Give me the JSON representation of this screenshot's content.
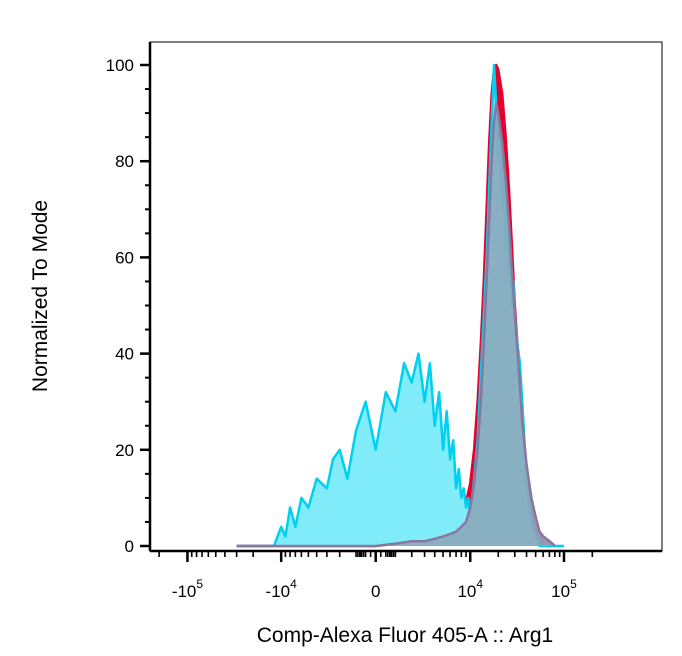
{
  "chart_data": {
    "type": "area",
    "title": "",
    "xlabel": "Comp-Alexa Fluor 405-A :: Arg1",
    "ylabel": "Normalized To Mode",
    "x_scale": "biexponential",
    "x_ticks": [
      {
        "value": -100000,
        "base": "-10",
        "exp": "5"
      },
      {
        "value": -10000,
        "base": "-10",
        "exp": "4"
      },
      {
        "value": 0,
        "base": "0",
        "exp": ""
      },
      {
        "value": 10000,
        "base": "10",
        "exp": "4"
      },
      {
        "value": 100000,
        "base": "10",
        "exp": "5"
      }
    ],
    "y_ticks": [
      "0",
      "20",
      "40",
      "60",
      "80",
      "100"
    ],
    "ylim": [
      0,
      100
    ],
    "grid": false,
    "series": [
      {
        "color": "#e8002a",
        "fill": "#e8002a",
        "x": [
          -30000,
          -20000,
          -10000,
          -5000,
          -2000,
          0,
          1000,
          2000,
          3000,
          4000,
          5000,
          6000,
          7000,
          8000,
          9000,
          10000,
          11000,
          12000,
          13000,
          14000,
          15000,
          16000,
          17000,
          18000,
          19000,
          20000,
          22000,
          24000,
          26000,
          28000,
          30000,
          33000,
          36000,
          40000,
          45000,
          50000,
          55000,
          60000,
          70000,
          80000
        ],
        "y": [
          0,
          0,
          0,
          0,
          0,
          0,
          0.5,
          1,
          1.5,
          2,
          3,
          4,
          5.5,
          7,
          9,
          13,
          20,
          30,
          42,
          55,
          70,
          84,
          94,
          99,
          100,
          99,
          94,
          85,
          74,
          62,
          50,
          38,
          26,
          16,
          9,
          5,
          3,
          2,
          1,
          0
        ]
      },
      {
        "color": "#00d0f0",
        "fill": "#80ecfa",
        "x": [
          -30000,
          -25000,
          -20000,
          -15000,
          -12000,
          -10000,
          -9000,
          -8000,
          -7000,
          -6000,
          -5000,
          -4000,
          -3000,
          -2500,
          -2000,
          -1500,
          -1000,
          -500,
          0,
          500,
          1000,
          1500,
          2000,
          2500,
          3000,
          3500,
          4000,
          4500,
          5000,
          5500,
          6000,
          6500,
          7000,
          7500,
          8000,
          8500,
          9000,
          9500,
          10000,
          11000,
          12000,
          13000,
          14000,
          15000,
          16000,
          17000,
          18000,
          19000,
          20000,
          21000,
          22000,
          23000,
          24000,
          25000,
          26000,
          27000,
          28000,
          29000,
          30000,
          32000,
          34000,
          36000,
          38000,
          40000,
          43000,
          46000,
          50000,
          55000,
          60000,
          70000,
          80000,
          100000
        ],
        "y": [
          0,
          0,
          0,
          0,
          0,
          4,
          2,
          8,
          4,
          10,
          8,
          14,
          12,
          18,
          20,
          14,
          24,
          30,
          20,
          32,
          28,
          38,
          34,
          40,
          30,
          38,
          25,
          32,
          20,
          28,
          18,
          22,
          12,
          16,
          10,
          12,
          8,
          10,
          6,
          14,
          22,
          36,
          48,
          60,
          75,
          88,
          100,
          92,
          80,
          85,
          70,
          78,
          62,
          70,
          55,
          60,
          50,
          55,
          48,
          42,
          38,
          30,
          22,
          12,
          8,
          4,
          2,
          0,
          0,
          0,
          0,
          0
        ]
      },
      {
        "color": "#8878a0",
        "fill": "#8aa8bc",
        "x": [
          -30000,
          -20000,
          -10000,
          -5000,
          -2000,
          0,
          1000,
          2000,
          3000,
          4000,
          5000,
          6000,
          7000,
          8000,
          9000,
          10000,
          11000,
          12000,
          13000,
          14000,
          15000,
          16000,
          17000,
          18000,
          19000,
          20000,
          22000,
          24000,
          26000,
          28000,
          30000,
          33000,
          36000,
          40000,
          45000,
          50000,
          55000,
          60000,
          70000,
          80000
        ],
        "y": [
          0,
          0,
          0,
          0,
          0,
          0,
          0.5,
          1,
          1,
          1.5,
          2,
          2.5,
          3,
          4,
          5,
          8,
          13,
          20,
          30,
          42,
          55,
          68,
          80,
          88,
          92,
          90,
          84,
          76,
          67,
          57,
          48,
          37,
          26,
          17,
          10,
          6,
          3,
          2,
          1,
          0
        ]
      }
    ]
  }
}
